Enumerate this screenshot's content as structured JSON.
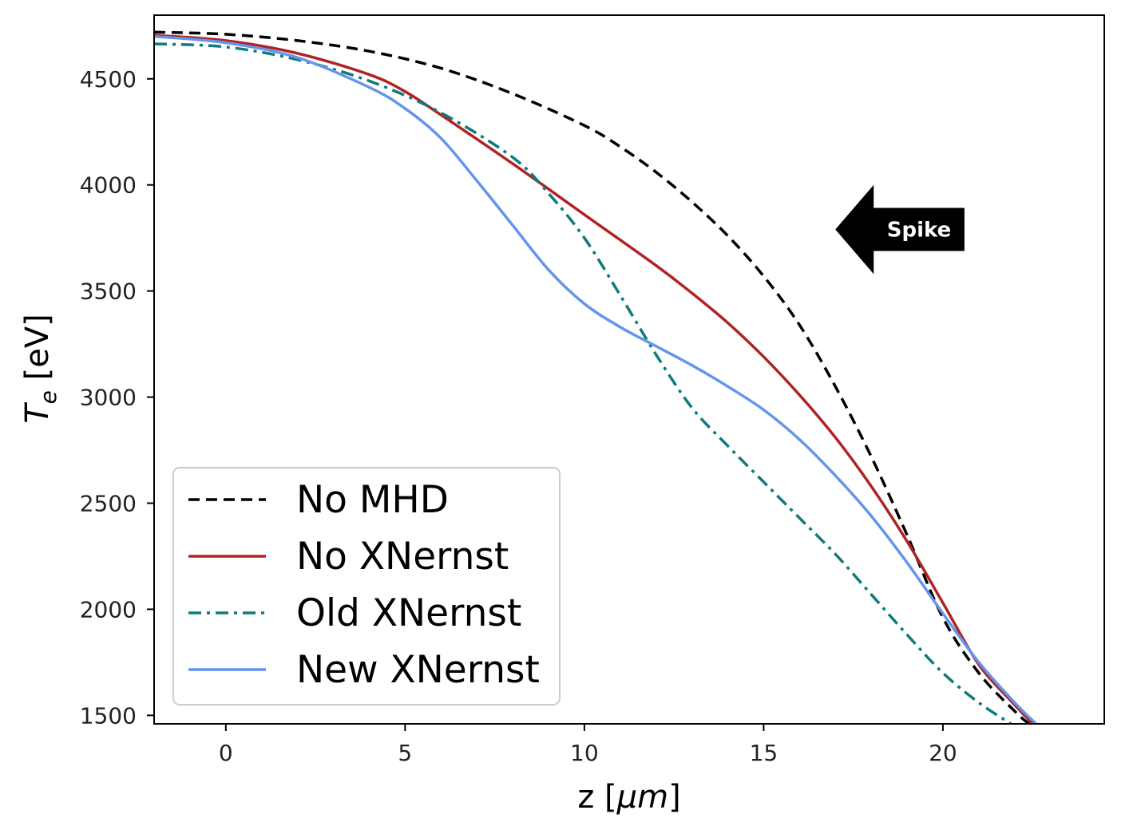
{
  "chart_data": {
    "type": "line",
    "title": "",
    "xlabel": "z [μm]",
    "ylabel": "T_e [eV]",
    "ylabel_main": "T",
    "ylabel_sub": "e",
    "ylabel_unit": " [eV]",
    "xlabel_main": "z [",
    "xlabel_unit": "μm",
    "xlabel_end": "]",
    "xlim": [
      -2,
      24.5
    ],
    "ylim": [
      1460,
      4800
    ],
    "xticks": [
      0,
      5,
      10,
      15,
      20
    ],
    "yticks": [
      1500,
      2000,
      2500,
      3000,
      3500,
      4000,
      4500
    ],
    "legend_position": "lower-left",
    "series": [
      {
        "name": "No MHD",
        "color": "#000000",
        "style": "dashed",
        "x": [
          -2,
          0,
          2,
          4,
          6,
          8,
          10,
          11,
          12,
          13,
          14,
          15,
          16,
          17,
          18,
          19,
          20,
          21,
          22,
          22.4
        ],
        "y": [
          4720,
          4710,
          4680,
          4630,
          4550,
          4430,
          4280,
          4180,
          4060,
          3920,
          3760,
          3570,
          3340,
          3050,
          2720,
          2350,
          1960,
          1700,
          1520,
          1460
        ]
      },
      {
        "name": "No XNernst",
        "color": "#b22222",
        "style": "solid",
        "x": [
          -2,
          0,
          2,
          4,
          5,
          6,
          8,
          10,
          12,
          13,
          14,
          15,
          16,
          17,
          18,
          19,
          20,
          21,
          22,
          22.5
        ],
        "y": [
          4705,
          4680,
          4620,
          4520,
          4440,
          4330,
          4100,
          3860,
          3620,
          3490,
          3350,
          3190,
          3010,
          2810,
          2580,
          2320,
          2030,
          1740,
          1550,
          1460
        ]
      },
      {
        "name": "Old XNernst",
        "color": "#0f7b7b",
        "style": "dashdot",
        "x": [
          -2,
          0,
          2,
          4,
          6,
          8,
          9,
          10,
          11,
          12,
          13,
          14,
          15,
          16,
          17,
          18,
          19,
          20,
          21,
          21.9
        ],
        "y": [
          4665,
          4650,
          4590,
          4490,
          4340,
          4130,
          3960,
          3750,
          3480,
          3200,
          2950,
          2770,
          2600,
          2430,
          2260,
          2070,
          1880,
          1700,
          1560,
          1460
        ]
      },
      {
        "name": "New XNernst",
        "color": "#6495ed",
        "style": "solid",
        "x": [
          -2,
          0,
          2,
          4,
          5,
          6,
          7,
          8,
          9,
          10,
          11,
          12,
          13,
          14,
          15,
          16,
          17,
          18,
          19,
          20,
          21,
          22,
          22.6
        ],
        "y": [
          4700,
          4670,
          4600,
          4460,
          4360,
          4220,
          4020,
          3810,
          3600,
          3440,
          3330,
          3240,
          3150,
          3050,
          2940,
          2800,
          2630,
          2440,
          2220,
          1980,
          1750,
          1560,
          1460
        ]
      }
    ],
    "annotation": {
      "text": "Spike",
      "shape": "left-arrow",
      "color": "#000000",
      "x": [
        17,
        20.6
      ],
      "y": [
        3580,
        4000
      ]
    }
  }
}
